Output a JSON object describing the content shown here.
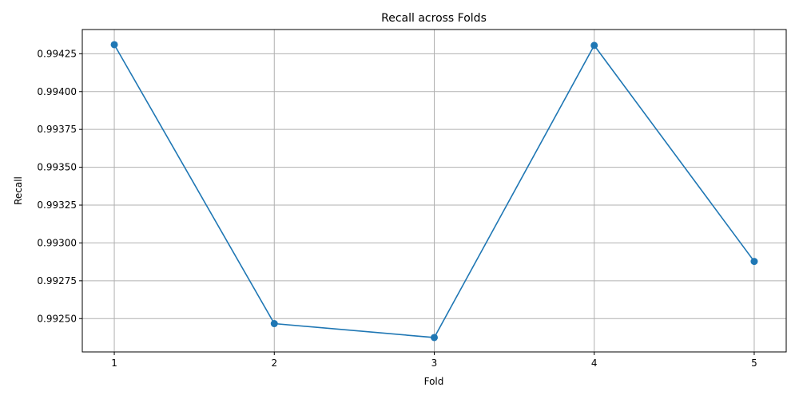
{
  "chart_data": {
    "type": "line",
    "title": "Recall across Folds",
    "xlabel": "Fold",
    "ylabel": "Recall",
    "x": [
      1,
      2,
      3,
      4,
      5
    ],
    "series": [
      {
        "values": [
          0.99431,
          0.992467,
          0.992375,
          0.994305,
          0.992878
        ],
        "color": "#1f77b4",
        "marker": "circle"
      }
    ],
    "xticks": [
      "1",
      "2",
      "3",
      "4",
      "5"
    ],
    "yticks": [
      "0.99250",
      "0.99275",
      "0.99300",
      "0.99325",
      "0.99350",
      "0.99375",
      "0.99400",
      "0.99425"
    ],
    "ytick_values": [
      0.9925,
      0.99275,
      0.993,
      0.99325,
      0.9935,
      0.99375,
      0.994,
      0.99425
    ],
    "xlim": [
      0.8,
      5.2
    ],
    "ylim": [
      0.99228,
      0.99441
    ],
    "grid": true,
    "grid_color": "#b0b0b0"
  }
}
